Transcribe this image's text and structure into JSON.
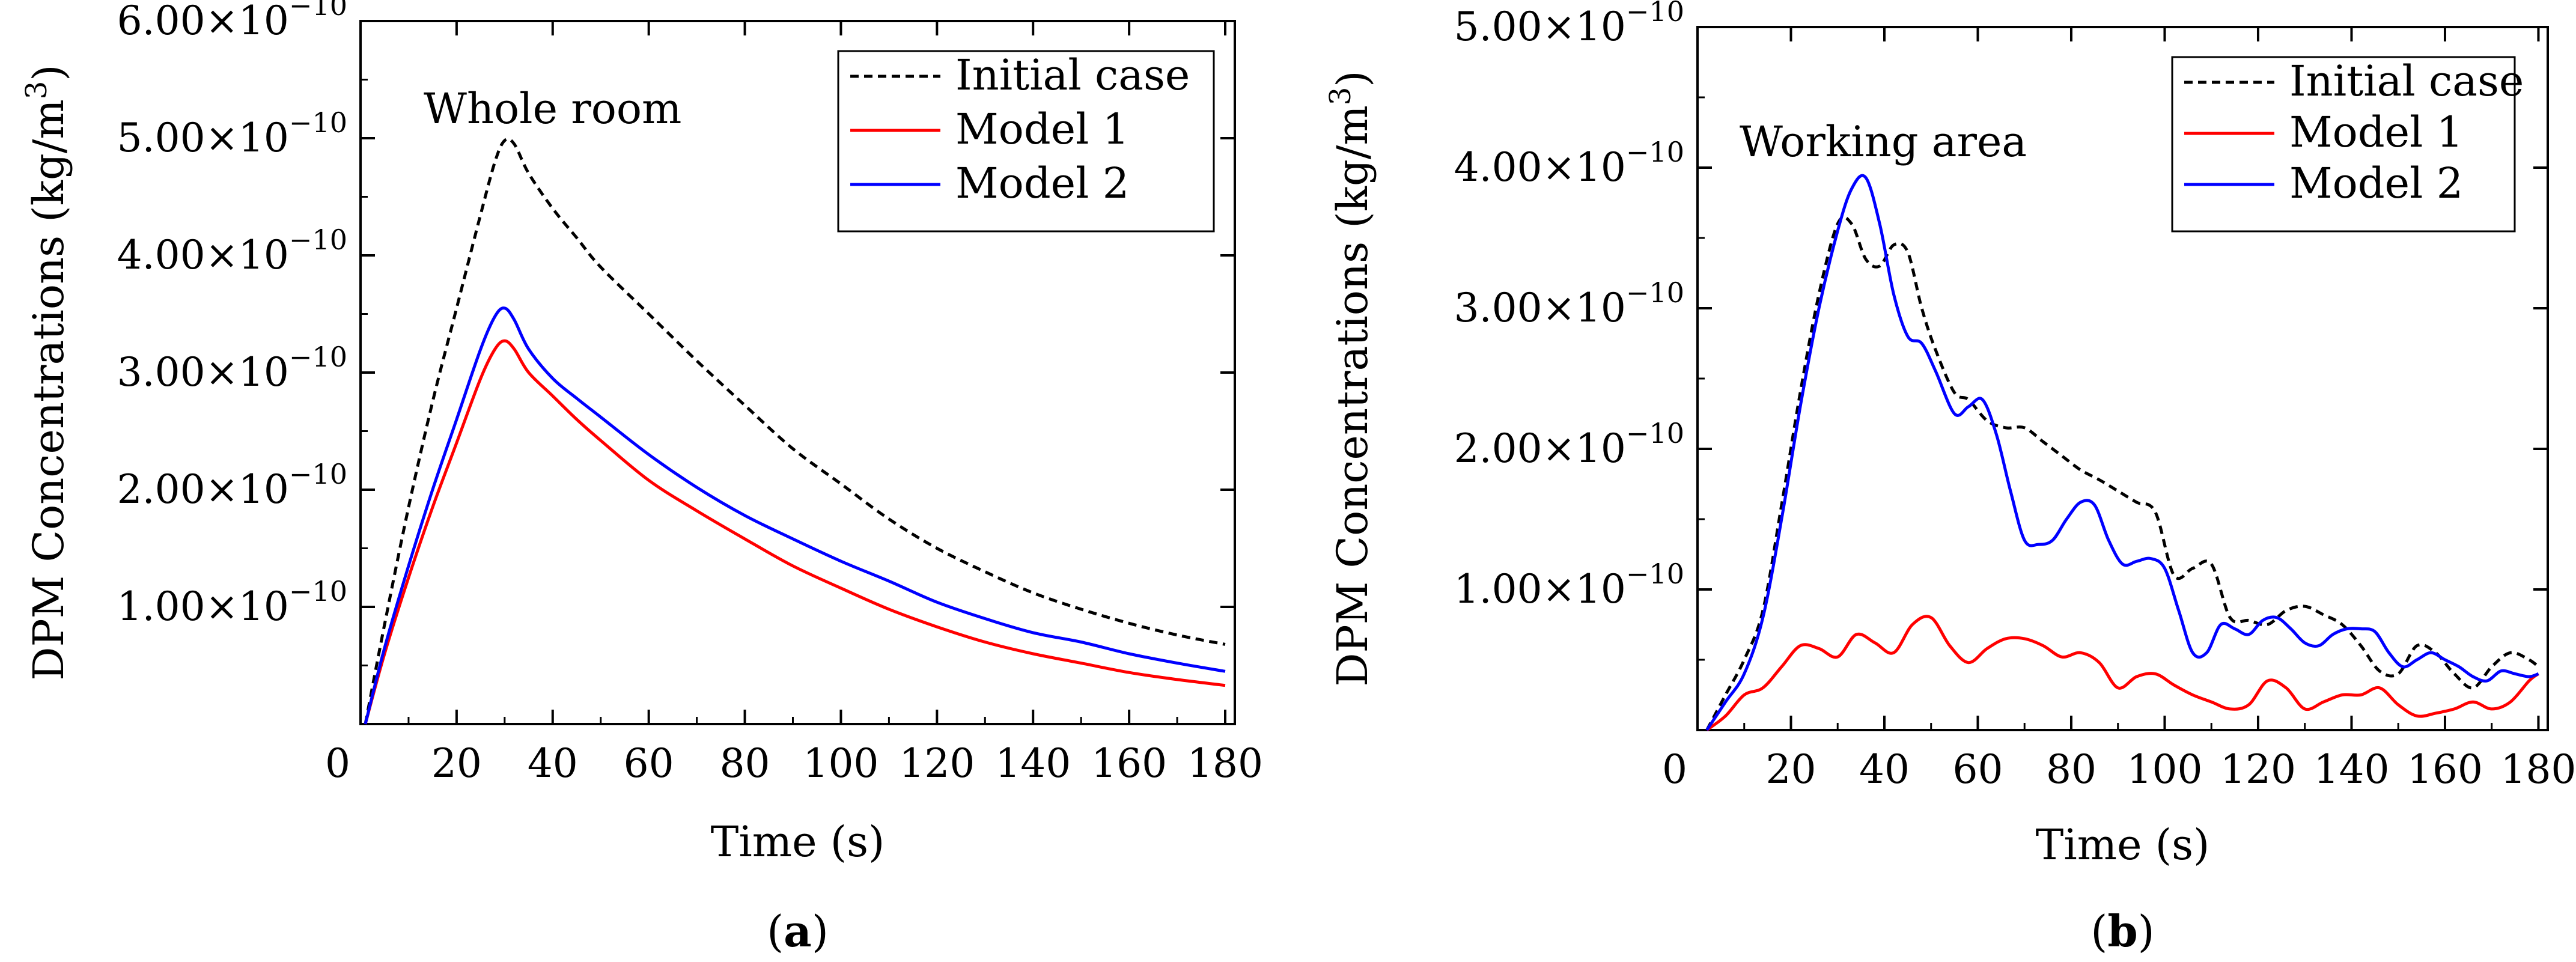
{
  "chart_data": [
    {
      "type": "line",
      "panel": "(a)",
      "panel_label_open": "(",
      "panel_label_letter": "a",
      "panel_label_close": ")",
      "annotation": "Whole room",
      "xlabel": "Time (s)",
      "ylabel_main": "DPM Concentrations (kg/m",
      "ylabel_sup": "3",
      "ylabel_close": ")",
      "xlim": [
        0,
        182
      ],
      "ylim": [
        0,
        6.0
      ],
      "xticks": [
        0,
        20,
        40,
        60,
        80,
        100,
        120,
        140,
        160,
        180
      ],
      "yticks": [
        {
          "value": 1.0,
          "mantissa": "1.00",
          "exponent": "−10"
        },
        {
          "value": 2.0,
          "mantissa": "2.00",
          "exponent": "−10"
        },
        {
          "value": 3.0,
          "mantissa": "3.00",
          "exponent": "−10"
        },
        {
          "value": 4.0,
          "mantissa": "4.00",
          "exponent": "−10"
        },
        {
          "value": 5.0,
          "mantissa": "5.00",
          "exponent": "−10"
        },
        {
          "value": 6.0,
          "mantissa": "6.00",
          "exponent": "−10"
        }
      ],
      "legend_position": "top-right",
      "series": [
        {
          "name": "Initial case",
          "color": "#000000",
          "dash": true,
          "x": [
            1,
            5,
            10,
            15,
            20,
            25,
            28,
            30,
            32,
            35,
            40,
            45,
            50,
            60,
            70,
            80,
            90,
            100,
            110,
            120,
            130,
            140,
            150,
            160,
            170,
            180
          ],
          "y": [
            0.0,
            0.85,
            1.85,
            2.75,
            3.55,
            4.35,
            4.8,
            4.98,
            4.95,
            4.7,
            4.4,
            4.15,
            3.9,
            3.5,
            3.1,
            2.72,
            2.35,
            2.05,
            1.75,
            1.5,
            1.3,
            1.12,
            0.98,
            0.86,
            0.76,
            0.68
          ]
        },
        {
          "name": "Model 1",
          "color": "#ff0000",
          "dash": false,
          "x": [
            1,
            5,
            10,
            15,
            20,
            25,
            28,
            30,
            32,
            35,
            40,
            45,
            50,
            60,
            70,
            80,
            90,
            100,
            110,
            120,
            130,
            140,
            150,
            160,
            170,
            180
          ],
          "y": [
            0.0,
            0.6,
            1.25,
            1.85,
            2.4,
            2.95,
            3.2,
            3.27,
            3.2,
            3.0,
            2.8,
            2.6,
            2.42,
            2.08,
            1.82,
            1.58,
            1.35,
            1.16,
            0.98,
            0.83,
            0.7,
            0.6,
            0.52,
            0.44,
            0.38,
            0.33
          ]
        },
        {
          "name": "Model 2",
          "color": "#0000ff",
          "dash": false,
          "x": [
            1,
            5,
            10,
            15,
            20,
            25,
            28,
            30,
            32,
            35,
            40,
            45,
            50,
            60,
            70,
            80,
            90,
            100,
            110,
            120,
            130,
            140,
            150,
            160,
            170,
            180
          ],
          "y": [
            0.0,
            0.65,
            1.35,
            2.0,
            2.6,
            3.2,
            3.48,
            3.55,
            3.45,
            3.2,
            2.95,
            2.78,
            2.62,
            2.3,
            2.02,
            1.78,
            1.58,
            1.39,
            1.22,
            1.04,
            0.9,
            0.78,
            0.7,
            0.6,
            0.52,
            0.45
          ]
        }
      ]
    },
    {
      "type": "line",
      "panel": "(b)",
      "panel_label_open": "(",
      "panel_label_letter": "b",
      "panel_label_close": ")",
      "annotation": "Working area",
      "xlabel": "Time (s)",
      "ylabel_main": "DPM Concentrations (kg/m",
      "ylabel_sup": "3",
      "ylabel_close": ")",
      "xlim": [
        0,
        182
      ],
      "ylim": [
        0,
        5.0
      ],
      "xticks": [
        0,
        20,
        40,
        60,
        80,
        100,
        120,
        140,
        160,
        180
      ],
      "yticks": [
        {
          "value": 1.0,
          "mantissa": "1.00",
          "exponent": "−10"
        },
        {
          "value": 2.0,
          "mantissa": "2.00",
          "exponent": "−10"
        },
        {
          "value": 3.0,
          "mantissa": "3.00",
          "exponent": "−10"
        },
        {
          "value": 4.0,
          "mantissa": "4.00",
          "exponent": "−10"
        },
        {
          "value": 5.0,
          "mantissa": "5.00",
          "exponent": "−10"
        }
      ],
      "legend_position": "top-right",
      "series": [
        {
          "name": "Initial case",
          "color": "#000000",
          "dash": true,
          "x": [
            2,
            6,
            10,
            14,
            18,
            22,
            26,
            30,
            33,
            36,
            39,
            42,
            45,
            48,
            51,
            55,
            58,
            62,
            66,
            70,
            74,
            78,
            82,
            86,
            90,
            94,
            98,
            102,
            106,
            110,
            114,
            118,
            122,
            126,
            130,
            134,
            138,
            142,
            146,
            150,
            154,
            158,
            162,
            166,
            170,
            174,
            178,
            180
          ],
          "y": [
            0.0,
            0.25,
            0.5,
            0.85,
            1.6,
            2.4,
            3.1,
            3.6,
            3.6,
            3.35,
            3.3,
            3.45,
            3.4,
            3.0,
            2.7,
            2.4,
            2.35,
            2.2,
            2.15,
            2.15,
            2.05,
            1.95,
            1.85,
            1.78,
            1.7,
            1.62,
            1.55,
            1.1,
            1.15,
            1.18,
            0.8,
            0.78,
            0.75,
            0.85,
            0.88,
            0.82,
            0.75,
            0.6,
            0.42,
            0.4,
            0.6,
            0.55,
            0.4,
            0.3,
            0.45,
            0.55,
            0.5,
            0.45
          ]
        },
        {
          "name": "Model 1",
          "color": "#ff0000",
          "dash": false,
          "x": [
            2,
            6,
            10,
            14,
            18,
            22,
            26,
            30,
            34,
            38,
            42,
            46,
            50,
            54,
            58,
            62,
            66,
            70,
            74,
            78,
            82,
            86,
            90,
            94,
            98,
            102,
            106,
            110,
            114,
            118,
            122,
            126,
            130,
            134,
            138,
            142,
            146,
            150,
            154,
            158,
            162,
            166,
            170,
            174,
            178,
            180
          ],
          "y": [
            0.0,
            0.1,
            0.25,
            0.3,
            0.45,
            0.6,
            0.58,
            0.52,
            0.68,
            0.62,
            0.55,
            0.75,
            0.8,
            0.6,
            0.48,
            0.58,
            0.65,
            0.65,
            0.6,
            0.52,
            0.55,
            0.48,
            0.3,
            0.38,
            0.4,
            0.32,
            0.25,
            0.2,
            0.15,
            0.18,
            0.35,
            0.3,
            0.15,
            0.2,
            0.25,
            0.25,
            0.3,
            0.18,
            0.1,
            0.12,
            0.15,
            0.2,
            0.15,
            0.2,
            0.35,
            0.4
          ]
        },
        {
          "name": "Model 2",
          "color": "#0000ff",
          "dash": false,
          "x": [
            2,
            6,
            10,
            14,
            18,
            22,
            26,
            30,
            33,
            36,
            39,
            42,
            45,
            48,
            51,
            55,
            58,
            61,
            64,
            67,
            70,
            73,
            76,
            79,
            82,
            85,
            88,
            91,
            94,
            97,
            100,
            103,
            106,
            109,
            112,
            115,
            118,
            121,
            124,
            127,
            130,
            133,
            136,
            139,
            142,
            145,
            148,
            151,
            154,
            157,
            160,
            163,
            166,
            169,
            172,
            175,
            178,
            180
          ],
          "y": [
            0.0,
            0.2,
            0.4,
            0.8,
            1.5,
            2.3,
            3.0,
            3.55,
            3.85,
            3.93,
            3.6,
            3.1,
            2.8,
            2.75,
            2.55,
            2.25,
            2.3,
            2.35,
            2.1,
            1.7,
            1.35,
            1.32,
            1.35,
            1.5,
            1.62,
            1.6,
            1.35,
            1.18,
            1.2,
            1.22,
            1.15,
            0.85,
            0.55,
            0.55,
            0.75,
            0.72,
            0.68,
            0.78,
            0.8,
            0.72,
            0.62,
            0.6,
            0.68,
            0.72,
            0.72,
            0.7,
            0.55,
            0.45,
            0.5,
            0.55,
            0.5,
            0.45,
            0.38,
            0.35,
            0.42,
            0.4,
            0.38,
            0.4
          ]
        }
      ]
    }
  ]
}
